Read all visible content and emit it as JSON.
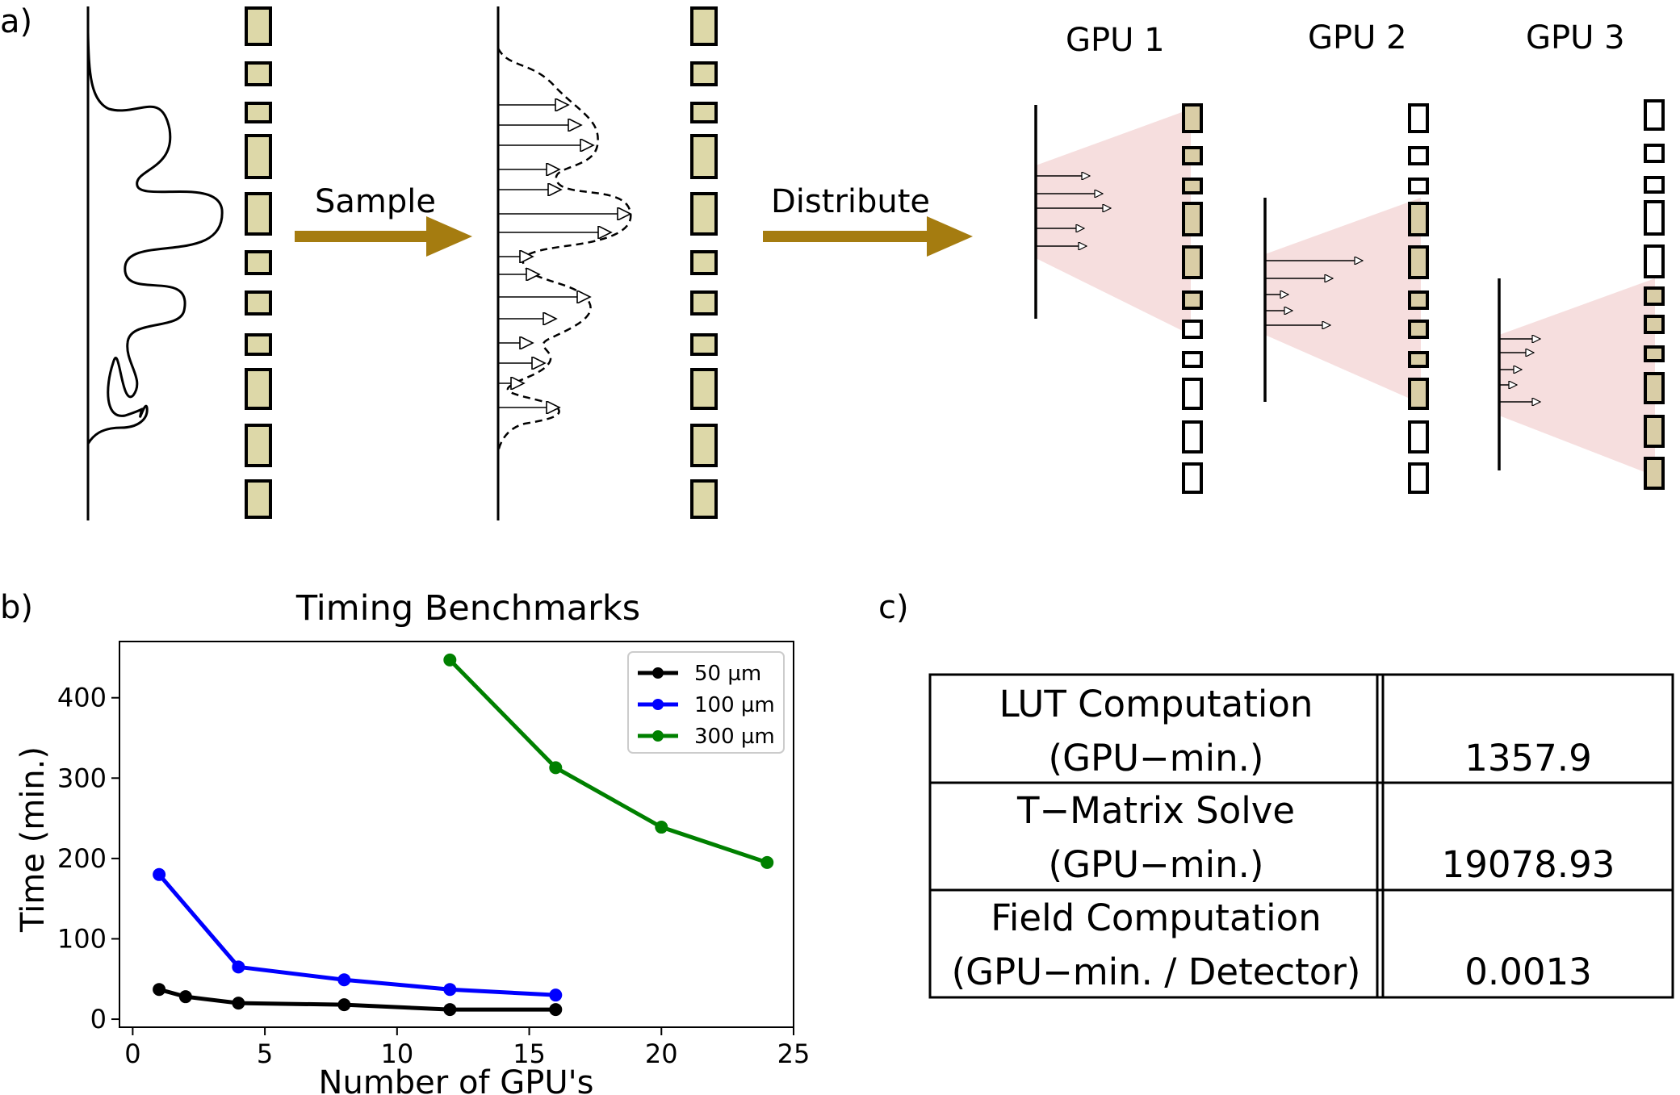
{
  "panel_a": {
    "label": "a)",
    "sample_label": "Sample",
    "distribute_label": "Distribute",
    "gpu_labels": [
      "GPU 1",
      "GPU 2",
      "GPU 3"
    ],
    "arrow_color": "#a57c10",
    "block_fill": "#ddd8a8",
    "cone_color": "#f6dede"
  },
  "panel_b": {
    "label": "b)"
  },
  "panel_c": {
    "label": "c)",
    "rows": [
      {
        "line1": "LUT Computation",
        "line2": "(GPU−min.)",
        "value": "1357.9"
      },
      {
        "line1": "T−Matrix Solve",
        "line2": "(GPU−min.)",
        "value": "19078.93"
      },
      {
        "line1": "Field Computation",
        "line2": "(GPU−min. / Detector)",
        "value": "0.0013"
      }
    ]
  },
  "chart_data": {
    "type": "line",
    "title": "Timing Benchmarks",
    "xlabel": "Number of GPU's",
    "ylabel": "Time (min.)",
    "xlim": [
      -0.5,
      25
    ],
    "ylim": [
      -10,
      470
    ],
    "xticks": [
      0,
      5,
      10,
      15,
      20,
      25
    ],
    "yticks": [
      0,
      100,
      200,
      300,
      400
    ],
    "legend_position": "top-right",
    "series": [
      {
        "name": "50 µm",
        "color": "#000000",
        "x": [
          1,
          2,
          4,
          8,
          12,
          16
        ],
        "y": [
          37,
          28,
          20,
          18,
          12,
          12
        ]
      },
      {
        "name": "100 µm",
        "color": "#0000ff",
        "x": [
          1,
          4,
          8,
          12,
          16
        ],
        "y": [
          180,
          65,
          49,
          37,
          30
        ]
      },
      {
        "name": "300 µm",
        "color": "#008000",
        "x": [
          12,
          16,
          20,
          24
        ],
        "y": [
          447,
          313,
          239,
          195
        ]
      }
    ]
  }
}
